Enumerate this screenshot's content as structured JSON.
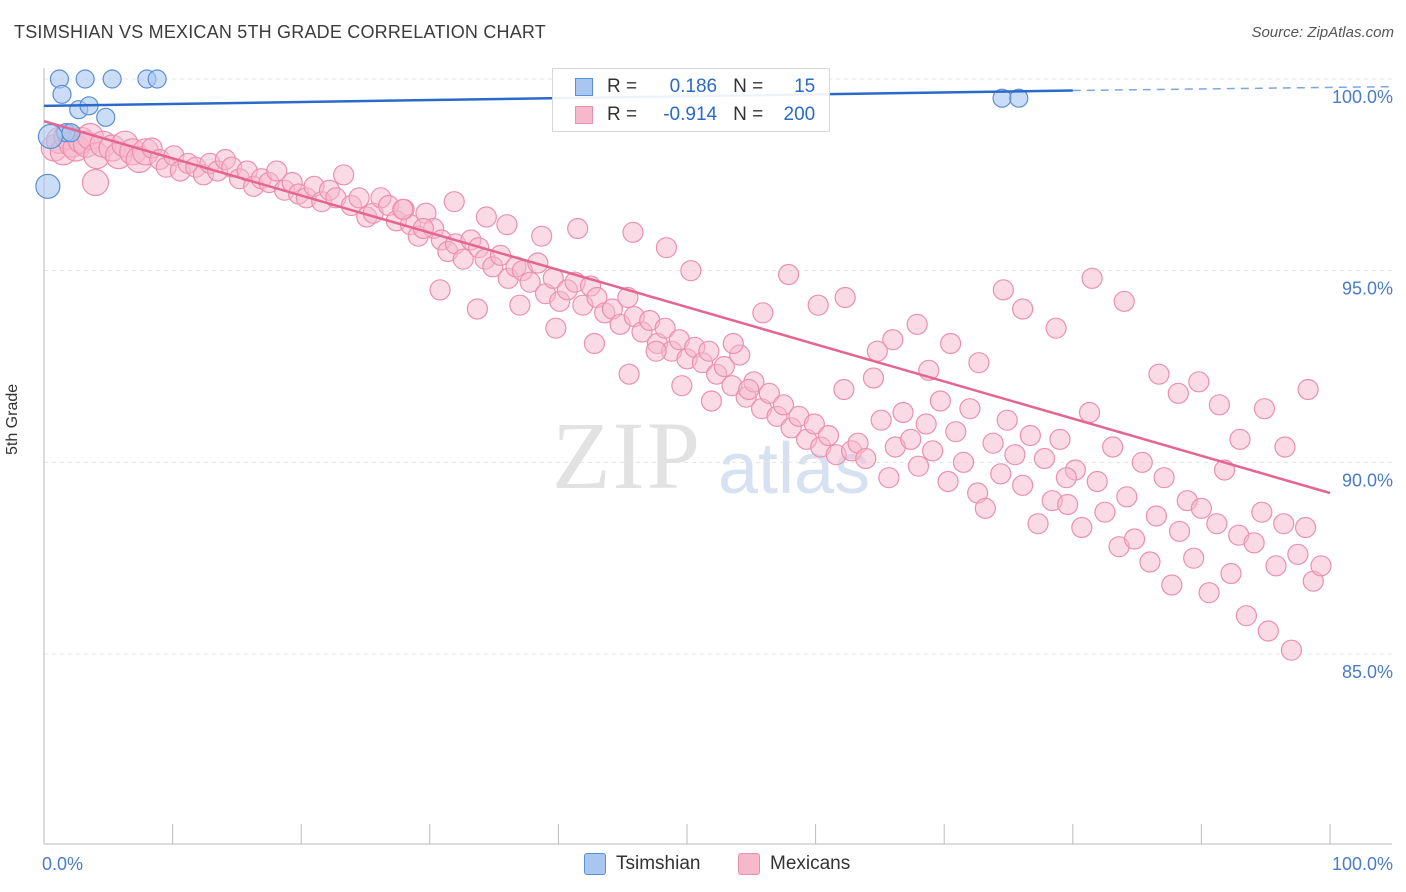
{
  "header": {
    "title": "TSIMSHIAN VS MEXICAN 5TH GRADE CORRELATION CHART",
    "source": "Source: ZipAtlas.com"
  },
  "watermark": {
    "zip": "ZIP",
    "atlas": "atlas"
  },
  "legend": {
    "r_label": "R =",
    "n_label": "N =",
    "rows": [
      {
        "r": "0.186",
        "n": "15"
      },
      {
        "r": "-0.914",
        "n": "200"
      }
    ]
  },
  "bottom_legend": {
    "tsimshian": "Tsimshian",
    "mexicans": "Mexicans"
  },
  "colors": {
    "tsimshian_fill": "#a9c6f0",
    "tsimshian_stroke": "#5a8fd6",
    "tsimshian_line": "#2a6ac8",
    "mexican_fill": "#f6b8cb",
    "mexican_stroke": "#ec8fae",
    "mexican_line": "#e46592",
    "grid": "#e4e4e4",
    "tick": "#4a7bc8"
  },
  "chart_data": {
    "type": "scatter",
    "title": "TSIMSHIAN VS MEXICAN 5TH GRADE CORRELATION CHART",
    "xlabel": "",
    "ylabel": "5th Grade",
    "xlim": [
      0,
      100
    ],
    "ylim": [
      80.0,
      101.0
    ],
    "x_tick_labels": [
      "0.0%",
      "100.0%"
    ],
    "y_ticks": [
      85.0,
      90.0,
      95.0,
      100.0
    ],
    "y_tick_labels": [
      "85.0%",
      "90.0%",
      "95.0%",
      "100.0%"
    ],
    "grid": true,
    "legend_position": "top-center",
    "series": [
      {
        "name": "Tsimshian",
        "r": 0.186,
        "n": 15,
        "trend": {
          "x0": 0,
          "y0": 99.3,
          "x1": 80,
          "y1": 99.7,
          "dashed_to": 100
        },
        "points": [
          [
            1.2,
            100.0
          ],
          [
            3.2,
            100.0
          ],
          [
            5.3,
            100.0
          ],
          [
            8.0,
            100.0
          ],
          [
            8.8,
            100.0
          ],
          [
            1.4,
            99.6
          ],
          [
            2.7,
            99.2
          ],
          [
            3.5,
            99.3
          ],
          [
            4.8,
            99.0
          ],
          [
            1.7,
            98.6
          ],
          [
            0.3,
            97.2
          ],
          [
            74.5,
            99.5
          ],
          [
            75.8,
            99.5
          ],
          [
            0.5,
            98.5
          ],
          [
            2.1,
            98.6
          ]
        ]
      },
      {
        "name": "Mexicans",
        "r": -0.914,
        "n": 200,
        "trend": {
          "x0": 0,
          "y0": 98.9,
          "x1": 100,
          "y1": 89.2
        },
        "points": [
          [
            0.8,
            98.2
          ],
          [
            1.2,
            98.4
          ],
          [
            1.5,
            98.1
          ],
          [
            1.8,
            98.5
          ],
          [
            2.2,
            98.3
          ],
          [
            2.5,
            98.2
          ],
          [
            2.9,
            98.4
          ],
          [
            3.3,
            98.3
          ],
          [
            3.6,
            98.5
          ],
          [
            4.1,
            98.0
          ],
          [
            4.6,
            98.3
          ],
          [
            5.3,
            98.2
          ],
          [
            5.8,
            98.0
          ],
          [
            6.3,
            98.3
          ],
          [
            6.9,
            98.1
          ],
          [
            7.4,
            97.9
          ],
          [
            7.9,
            98.1
          ],
          [
            8.4,
            98.2
          ],
          [
            9.0,
            97.9
          ],
          [
            9.5,
            97.7
          ],
          [
            10.1,
            98.0
          ],
          [
            10.6,
            97.6
          ],
          [
            11.2,
            97.8
          ],
          [
            11.8,
            97.7
          ],
          [
            12.4,
            97.5
          ],
          [
            12.9,
            97.8
          ],
          [
            13.5,
            97.6
          ],
          [
            14.1,
            97.9
          ],
          [
            14.6,
            97.7
          ],
          [
            15.2,
            97.4
          ],
          [
            15.8,
            97.6
          ],
          [
            16.3,
            97.2
          ],
          [
            16.9,
            97.4
          ],
          [
            17.5,
            97.3
          ],
          [
            18.1,
            97.6
          ],
          [
            18.7,
            97.1
          ],
          [
            19.3,
            97.3
          ],
          [
            19.8,
            97.0
          ],
          [
            20.4,
            96.9
          ],
          [
            21.0,
            97.2
          ],
          [
            21.6,
            96.8
          ],
          [
            22.2,
            97.1
          ],
          [
            22.7,
            96.9
          ],
          [
            23.3,
            97.5
          ],
          [
            23.9,
            96.7
          ],
          [
            24.5,
            96.9
          ],
          [
            25.1,
            96.4
          ],
          [
            25.6,
            96.5
          ],
          [
            26.2,
            96.9
          ],
          [
            26.8,
            96.7
          ],
          [
            27.4,
            96.3
          ],
          [
            28.0,
            96.6
          ],
          [
            28.5,
            96.2
          ],
          [
            29.1,
            95.9
          ],
          [
            29.7,
            96.5
          ],
          [
            30.3,
            96.1
          ],
          [
            30.9,
            95.8
          ],
          [
            31.4,
            95.5
          ],
          [
            32.0,
            95.7
          ],
          [
            32.6,
            95.3
          ],
          [
            33.2,
            95.8
          ],
          [
            33.8,
            95.6
          ],
          [
            34.3,
            95.3
          ],
          [
            34.9,
            95.1
          ],
          [
            35.5,
            95.4
          ],
          [
            36.1,
            94.8
          ],
          [
            36.7,
            95.1
          ],
          [
            37.2,
            95.0
          ],
          [
            37.8,
            94.7
          ],
          [
            38.4,
            95.2
          ],
          [
            39.0,
            94.4
          ],
          [
            39.6,
            94.8
          ],
          [
            40.1,
            94.2
          ],
          [
            40.7,
            94.5
          ],
          [
            41.3,
            94.7
          ],
          [
            41.9,
            94.1
          ],
          [
            42.5,
            94.6
          ],
          [
            43.0,
            94.3
          ],
          [
            43.6,
            93.9
          ],
          [
            44.2,
            94.0
          ],
          [
            44.8,
            93.6
          ],
          [
            45.4,
            94.3
          ],
          [
            45.9,
            93.8
          ],
          [
            46.5,
            93.4
          ],
          [
            47.1,
            93.7
          ],
          [
            47.7,
            93.1
          ],
          [
            48.3,
            93.5
          ],
          [
            48.8,
            92.9
          ],
          [
            49.4,
            93.2
          ],
          [
            50.0,
            92.7
          ],
          [
            50.6,
            93.0
          ],
          [
            51.2,
            92.6
          ],
          [
            51.7,
            92.9
          ],
          [
            52.3,
            92.3
          ],
          [
            52.9,
            92.5
          ],
          [
            53.5,
            92.0
          ],
          [
            54.1,
            92.8
          ],
          [
            54.6,
            91.7
          ],
          [
            55.2,
            92.1
          ],
          [
            55.8,
            91.4
          ],
          [
            56.4,
            91.8
          ],
          [
            57.0,
            91.2
          ],
          [
            57.5,
            91.5
          ],
          [
            58.1,
            90.9
          ],
          [
            58.7,
            91.2
          ],
          [
            59.3,
            90.6
          ],
          [
            59.9,
            91.0
          ],
          [
            60.4,
            90.4
          ],
          [
            61.0,
            90.7
          ],
          [
            61.6,
            90.2
          ],
          [
            62.2,
            91.9
          ],
          [
            62.8,
            90.3
          ],
          [
            63.3,
            90.5
          ],
          [
            63.9,
            90.1
          ],
          [
            64.5,
            92.2
          ],
          [
            65.1,
            91.1
          ],
          [
            65.7,
            89.6
          ],
          [
            66.2,
            90.4
          ],
          [
            66.8,
            91.3
          ],
          [
            67.4,
            90.6
          ],
          [
            68.0,
            89.9
          ],
          [
            68.6,
            91.0
          ],
          [
            69.1,
            90.3
          ],
          [
            69.7,
            91.6
          ],
          [
            70.3,
            89.5
          ],
          [
            70.9,
            90.8
          ],
          [
            71.5,
            90.0
          ],
          [
            72.0,
            91.4
          ],
          [
            72.6,
            89.2
          ],
          [
            73.2,
            88.8
          ],
          [
            73.8,
            90.5
          ],
          [
            74.4,
            89.7
          ],
          [
            74.9,
            91.1
          ],
          [
            75.5,
            90.2
          ],
          [
            76.1,
            89.4
          ],
          [
            76.7,
            90.7
          ],
          [
            77.3,
            88.4
          ],
          [
            77.8,
            90.1
          ],
          [
            78.4,
            89.0
          ],
          [
            79.0,
            90.6
          ],
          [
            79.6,
            88.9
          ],
          [
            80.2,
            89.8
          ],
          [
            80.7,
            88.3
          ],
          [
            81.3,
            91.3
          ],
          [
            81.9,
            89.5
          ],
          [
            82.5,
            88.7
          ],
          [
            83.1,
            90.4
          ],
          [
            83.6,
            87.8
          ],
          [
            84.2,
            89.1
          ],
          [
            84.8,
            88.0
          ],
          [
            85.4,
            90.0
          ],
          [
            86.0,
            87.4
          ],
          [
            86.5,
            88.6
          ],
          [
            87.1,
            89.6
          ],
          [
            87.7,
            86.8
          ],
          [
            88.3,
            88.2
          ],
          [
            88.9,
            89.0
          ],
          [
            89.4,
            87.5
          ],
          [
            90.0,
            88.8
          ],
          [
            90.6,
            86.6
          ],
          [
            91.2,
            88.4
          ],
          [
            91.8,
            89.8
          ],
          [
            92.3,
            87.1
          ],
          [
            92.9,
            88.1
          ],
          [
            93.5,
            86.0
          ],
          [
            94.1,
            87.9
          ],
          [
            94.7,
            88.7
          ],
          [
            95.2,
            85.6
          ],
          [
            95.8,
            87.3
          ],
          [
            96.4,
            88.4
          ],
          [
            97.0,
            85.1
          ],
          [
            97.5,
            87.6
          ],
          [
            98.1,
            88.3
          ],
          [
            98.7,
            86.9
          ],
          [
            99.3,
            87.3
          ],
          [
            74.6,
            94.5
          ],
          [
            76.1,
            94.0
          ],
          [
            78.7,
            93.5
          ],
          [
            81.5,
            94.8
          ],
          [
            84.0,
            94.2
          ],
          [
            86.7,
            92.3
          ],
          [
            88.2,
            91.8
          ],
          [
            89.8,
            92.1
          ],
          [
            91.4,
            91.5
          ],
          [
            93.0,
            90.6
          ],
          [
            94.9,
            91.4
          ],
          [
            96.5,
            90.4
          ],
          [
            98.3,
            91.9
          ],
          [
            70.5,
            93.1
          ],
          [
            72.7,
            92.6
          ],
          [
            57.9,
            94.9
          ],
          [
            62.3,
            94.3
          ],
          [
            66.0,
            93.2
          ],
          [
            60.2,
            94.1
          ],
          [
            68.8,
            92.4
          ],
          [
            55.9,
            93.9
          ],
          [
            53.6,
            93.1
          ],
          [
            64.8,
            92.9
          ],
          [
            67.9,
            93.6
          ],
          [
            79.5,
            89.6
          ],
          [
            50.3,
            95.0
          ],
          [
            48.4,
            95.6
          ],
          [
            45.8,
            96.0
          ],
          [
            41.5,
            96.1
          ],
          [
            38.7,
            95.9
          ],
          [
            36.0,
            96.2
          ],
          [
            34.4,
            96.4
          ],
          [
            31.9,
            96.8
          ],
          [
            29.5,
            96.1
          ],
          [
            27.9,
            96.6
          ],
          [
            30.8,
            94.5
          ],
          [
            33.7,
            94.0
          ],
          [
            37.0,
            94.1
          ],
          [
            39.8,
            93.5
          ],
          [
            42.8,
            93.1
          ],
          [
            45.5,
            92.3
          ],
          [
            47.6,
            92.9
          ],
          [
            49.6,
            92.0
          ],
          [
            51.9,
            91.6
          ],
          [
            54.8,
            91.9
          ]
        ]
      }
    ]
  }
}
